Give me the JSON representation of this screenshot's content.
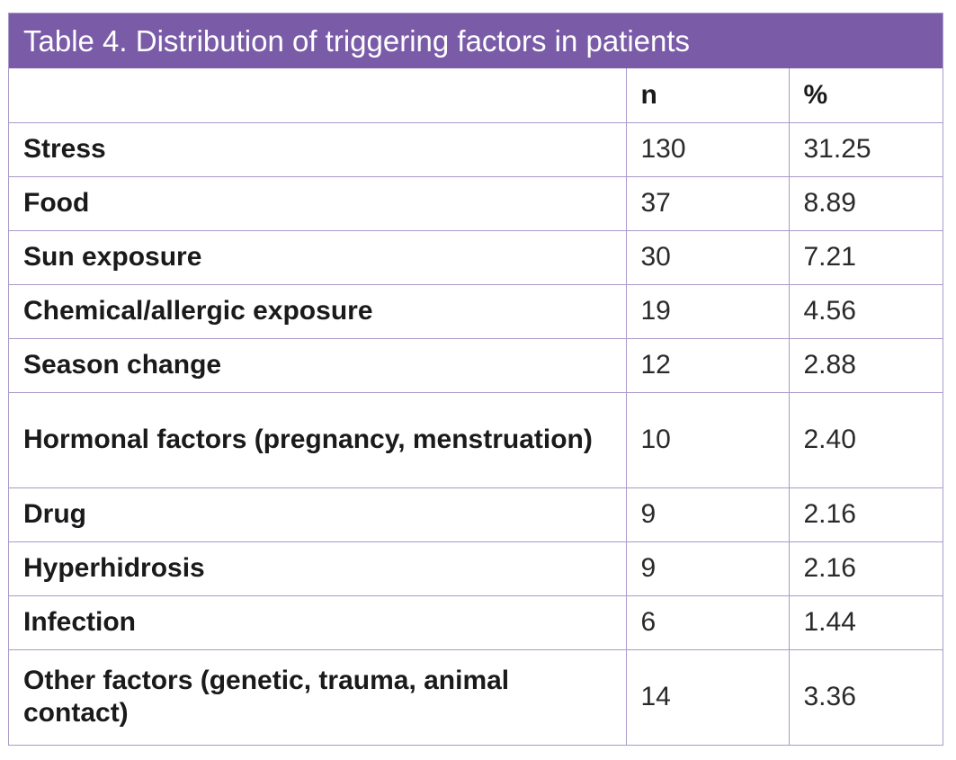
{
  "table": {
    "title": "Table 4. Distribution of triggering factors in patients",
    "headers": {
      "factor": "",
      "n": "n",
      "pct": "%"
    },
    "rows": [
      {
        "factor": "Stress",
        "n": "130",
        "pct": "31.25"
      },
      {
        "factor": "Food",
        "n": "37",
        "pct": "8.89"
      },
      {
        "factor": "Sun exposure",
        "n": "30",
        "pct": "7.21"
      },
      {
        "factor": "Chemical/allergic exposure",
        "n": "19",
        "pct": "4.56"
      },
      {
        "factor": "Season change",
        "n": "12",
        "pct": "2.88"
      },
      {
        "factor": "Hormonal factors (pregnancy, menstruation)",
        "n": "10",
        "pct": "2.40"
      },
      {
        "factor": "Drug",
        "n": "9",
        "pct": "2.16"
      },
      {
        "factor": "Hyperhidrosis",
        "n": "9",
        "pct": "2.16"
      },
      {
        "factor": "Infection",
        "n": "6",
        "pct": "1.44"
      },
      {
        "factor": "Other factors (genetic, trauma, animal contact)",
        "n": "14",
        "pct": "3.36"
      }
    ]
  },
  "colors": {
    "title_bg": "#7a5ba8",
    "border": "#a99ac9"
  }
}
